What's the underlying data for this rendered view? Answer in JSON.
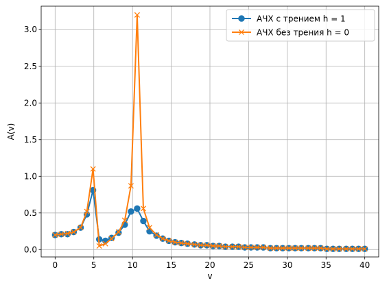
{
  "chart_data": {
    "type": "line",
    "title": "",
    "xlabel": "v",
    "ylabel": "A(v)",
    "xlim": [
      -1.8,
      41.8
    ],
    "ylim": [
      -0.1,
      3.32
    ],
    "xticks": [
      0,
      5,
      10,
      15,
      20,
      25,
      30,
      35,
      40
    ],
    "yticks": [
      0.0,
      0.5,
      1.0,
      1.5,
      2.0,
      2.5,
      3.0
    ],
    "xtick_labels": [
      "0",
      "5",
      "10",
      "15",
      "20",
      "25",
      "30",
      "35",
      "40"
    ],
    "ytick_labels": [
      "0.0",
      "0.5",
      "1.0",
      "1.5",
      "2.0",
      "2.5",
      "3.0"
    ],
    "grid": true,
    "legend_position": "top-right",
    "x": [
      0.0,
      0.8,
      1.6,
      2.4,
      3.3,
      4.1,
      4.9,
      5.7,
      6.5,
      7.3,
      8.2,
      9.0,
      9.8,
      10.6,
      11.4,
      12.2,
      13.1,
      13.9,
      14.7,
      15.5,
      16.3,
      17.1,
      18.0,
      18.8,
      19.6,
      20.4,
      21.2,
      22.0,
      22.9,
      23.7,
      24.5,
      25.3,
      26.1,
      26.9,
      27.8,
      28.6,
      29.4,
      30.2,
      31.0,
      31.8,
      32.7,
      33.5,
      34.3,
      35.1,
      35.9,
      36.7,
      37.6,
      38.4,
      39.2,
      40.0
    ],
    "series": [
      {
        "name": "АЧХ с трением h = 1",
        "color": "#1f77b4",
        "marker": "circle",
        "values": [
          0.2,
          0.21,
          0.21,
          0.24,
          0.3,
          0.48,
          0.81,
          0.14,
          0.12,
          0.16,
          0.23,
          0.34,
          0.52,
          0.56,
          0.39,
          0.25,
          0.19,
          0.15,
          0.12,
          0.1,
          0.09,
          0.08,
          0.07,
          0.06,
          0.06,
          0.05,
          0.05,
          0.04,
          0.04,
          0.04,
          0.03,
          0.03,
          0.03,
          0.03,
          0.02,
          0.02,
          0.02,
          0.02,
          0.02,
          0.02,
          0.02,
          0.02,
          0.02,
          0.01,
          0.01,
          0.01,
          0.01,
          0.01,
          0.01,
          0.01
        ]
      },
      {
        "name": "АЧХ без трения h = 0",
        "color": "#ff7f0e",
        "marker": "x",
        "values": [
          0.2,
          0.21,
          0.22,
          0.24,
          0.3,
          0.52,
          1.1,
          0.05,
          0.08,
          0.15,
          0.24,
          0.4,
          0.87,
          3.2,
          0.56,
          0.3,
          0.2,
          0.15,
          0.12,
          0.1,
          0.09,
          0.08,
          0.07,
          0.06,
          0.06,
          0.05,
          0.05,
          0.04,
          0.04,
          0.04,
          0.03,
          0.03,
          0.03,
          0.03,
          0.02,
          0.02,
          0.02,
          0.02,
          0.02,
          0.02,
          0.02,
          0.02,
          0.02,
          0.01,
          0.01,
          0.01,
          0.01,
          0.01,
          0.01,
          0.01
        ]
      }
    ]
  }
}
